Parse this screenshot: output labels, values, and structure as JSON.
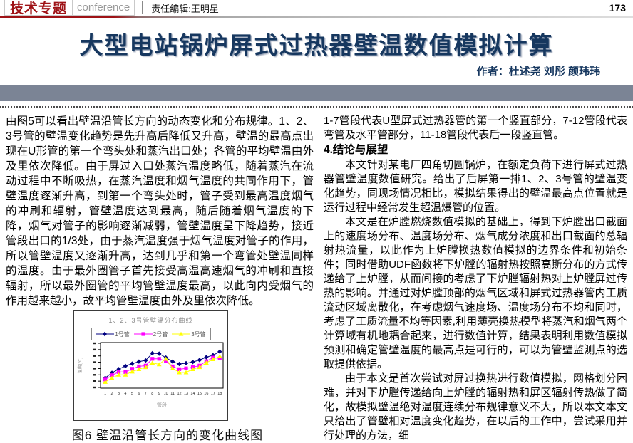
{
  "header": {
    "brand": "技术专题",
    "brand_sub": "conference",
    "editor": "责任编辑:王明星",
    "page_number": "173",
    "brand_color": "#9e1216"
  },
  "title": {
    "text": "大型电站锅炉屏式过热器壁温数值模拟计算",
    "color": "#16375f"
  },
  "byline": "作者：杜述尧 刘彤 颜玮玮",
  "left_column": {
    "paragraph": "由图5可以看出壁温沿管长方向的动态变化和分布规律。1、2、3号管的壁温变化趋势是先升高后降低又升高，壁温的最高点出现在U形管的第一个弯头处和蒸汽出口处；各管的平均壁温由外及里依次降低。由于屏过入口处蒸汽温度略低，随着蒸汽在流动过程中不断吸热，在蒸汽温度和烟气温度的共同作用下，管壁温度逐渐升高，到第一个弯头处时，管子受到最高温度烟气的冲刷和辐射，管壁温度达到最高，随后随着烟气温度的下降，烟气对管子的影响逐渐减弱，管壁温度呈下降趋势，接近管段出口的1/3处，由于蒸汽温度强于烟气温度对管子的作用，所以管壁温度又逐渐升高，达到几乎和第一个弯管处壁温同样的温度。由于最外圈管子首先接受高温高速烟气的冲刷和直接辐射，所以最外圈管的平均管壁温度最高，以此向内受烟气的作用越来越小，故平均管壁温度由外及里依次降低。",
    "figure_caption": "图6 壁温沿管长方向的变化曲线图"
  },
  "right_column": {
    "intro": "1-7管段代表U型屏式过热器管的第一个竖直部分，7-12管段代表弯管及水平管部分，11-18管段代表后一段竖直管。",
    "section_heading": "4.结论与展望",
    "paragraphs": [
      "本文针对某电厂四角切圆锅炉，在额定负荷下进行屏式过热器管壁温度数值研究。给出了后屏第一排1、2、3号管的壁温变化趋势，同现场情况相比，模拟结果得出的壁温最高点位置就是运行过程中经常发生超温爆管的位置。",
      "本文是在炉膛燃烧数值模拟的基础上，得到下炉膛出口截面上的速度场分布、温度场分布、烟气成分浓度和出口截面的总辐射热流量，以此作为上炉膛换热数值模拟的边界条件和初始条件；同时借助UDF函数将下炉膛的辐射热按照高斯分布的方式传递给了上炉膛，从而间接的考虑了下炉膛辐射热对上炉膛屏过传热的影响。并通过对炉膛顶部的烟气区域和屏式过热器管内工质流动区域离散化，在考虑烟气速度场、温度场分布不均和同时，考虑了工质流量不均等因素,利用薄壳换热模型将蒸汽和烟气两个计算域有机地耦合起来，进行数值计算，结果表明利用数值模拟预测和确定管壁温度的最高点是可行的，可以为管壁监测点的选取提供依据。",
      "由于本文是首次尝试对屏过换热进行数值模拟，网格划分困难，并对下炉膛传递给向上炉膛的辐射热和屏区辐射传热做了简化，故模拟壁温绝对温度连续分布规律意义不大，所以本文本文只给出了管壁相对温度变化趋势，在以后的工作中，尝试采用并行处理的方法，细"
    ]
  },
  "chart_data": {
    "type": "line",
    "title": "1、2、3号管壁温分布曲线",
    "xlabel": "管段",
    "ylabel": "温度(℃)",
    "x": [
      1,
      2,
      3,
      4,
      5,
      6,
      7,
      8,
      9,
      10,
      11,
      12,
      13,
      14,
      15,
      16,
      17,
      18
    ],
    "series": [
      {
        "name": "1号管",
        "color": "#000080",
        "marker": "diamond",
        "values": [
          22,
          35,
          44,
          52,
          58,
          63,
          66,
          84,
          83,
          73,
          63,
          57,
          59,
          62,
          67,
          74,
          79,
          88
        ]
      },
      {
        "name": "2号管",
        "color": "#ff00ff",
        "marker": "square",
        "values": [
          18,
          29,
          37,
          37,
          45,
          51,
          53,
          70,
          70,
          64,
          51,
          44,
          46,
          49,
          53,
          64,
          73,
          71
        ]
      },
      {
        "name": "3号管",
        "color": "#ffff00",
        "marker": "triangle",
        "values": [
          12,
          22,
          30,
          30,
          38,
          44,
          49,
          60,
          56,
          70,
          46,
          36,
          36,
          44,
          49,
          60,
          69,
          76
        ]
      }
    ],
    "ylim": [
      0,
      100
    ],
    "y_axis": {
      "tick_count": 8,
      "labels_legible": false
    },
    "grid": false,
    "legend_position": "top"
  }
}
